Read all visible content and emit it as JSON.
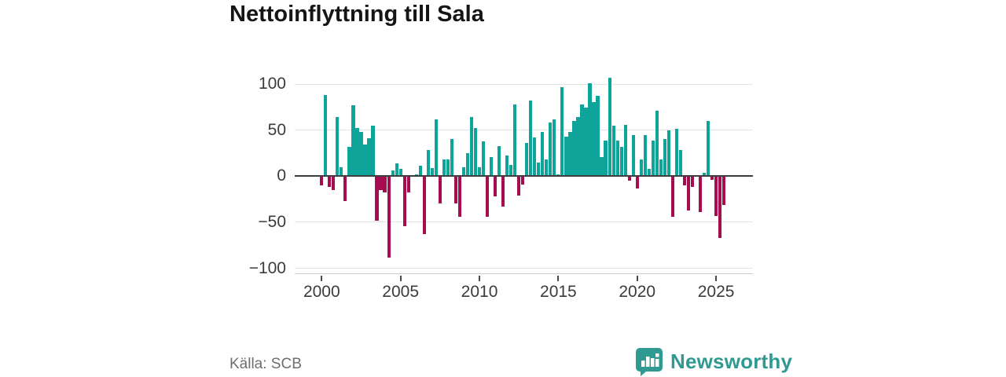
{
  "header": {
    "title": "Nettoinflyttning till Sala"
  },
  "footer": {
    "source": "Källa: SCB",
    "brand": "Newsworthy"
  },
  "colors": {
    "positive": "#0fa49a",
    "negative": "#a50d50",
    "brand_teal": "#2e9a92",
    "zero_axis": "#3f3f3f",
    "gridline": "#e3e3e3"
  },
  "chart_data": {
    "type": "bar",
    "title": "Nettoinflyttning till Sala",
    "xlabel": "",
    "ylabel": "",
    "x_start": "2000Q1",
    "x_end": "2025Q3",
    "frequency": "quarterly",
    "grid": true,
    "legend_position": "none",
    "ylim": [
      -112,
      114
    ],
    "y_ticks": [
      100,
      50,
      0,
      -50,
      -100
    ],
    "y_tick_labels": [
      "100",
      "50",
      "0",
      "−50",
      "−100"
    ],
    "x_tick_years": [
      "2000",
      "2005",
      "2010",
      "2015",
      "2020",
      "2025"
    ],
    "values": [
      -10,
      88,
      -12,
      -15,
      64,
      10,
      -27,
      32,
      77,
      52,
      48,
      34,
      41,
      55,
      -48,
      -15,
      -18,
      -88,
      6,
      14,
      8,
      -54,
      -18,
      1,
      2,
      11,
      -63,
      28,
      9,
      62,
      -30,
      18,
      18,
      40,
      -30,
      -44,
      10,
      25,
      64,
      52,
      10,
      38,
      -44,
      21,
      -22,
      33,
      -33,
      22,
      12,
      78,
      -21,
      -9,
      36,
      82,
      42,
      15,
      48,
      18,
      58,
      62,
      2,
      97,
      43,
      48,
      60,
      64,
      78,
      74,
      101,
      80,
      87,
      21,
      39,
      107,
      55,
      39,
      32,
      56,
      -5,
      45,
      -13,
      18,
      45,
      8,
      39,
      71,
      18,
      40,
      50,
      -44,
      51,
      28,
      -10,
      -37,
      -12,
      0,
      -39,
      4,
      60,
      -4,
      -43,
      -67,
      -31
    ]
  }
}
